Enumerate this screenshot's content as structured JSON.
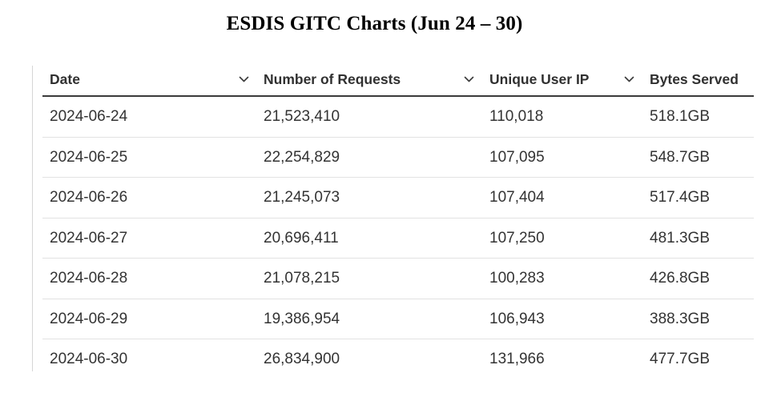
{
  "title": "ESDIS GITC Charts (Jun 24 – 30)",
  "columns": [
    {
      "label": "Date",
      "icon": "chevron-down-icon"
    },
    {
      "label": "Number of Requests",
      "icon": "chevron-down-icon"
    },
    {
      "label": "Unique User IP",
      "icon": "chevron-down-icon"
    },
    {
      "label": "Bytes Served"
    }
  ],
  "rows": [
    {
      "date": "2024-06-24",
      "requests": "21,523,410",
      "unique_ip": "110,018",
      "bytes": "518.1GB"
    },
    {
      "date": "2024-06-25",
      "requests": "22,254,829",
      "unique_ip": "107,095",
      "bytes": "548.7GB"
    },
    {
      "date": "2024-06-26",
      "requests": "21,245,073",
      "unique_ip": "107,404",
      "bytes": "517.4GB"
    },
    {
      "date": "2024-06-27",
      "requests": "20,696,411",
      "unique_ip": "107,250",
      "bytes": "481.3GB"
    },
    {
      "date": "2024-06-28",
      "requests": "21,078,215",
      "unique_ip": "100,283",
      "bytes": "426.8GB"
    },
    {
      "date": "2024-06-29",
      "requests": "19,386,954",
      "unique_ip": "106,943",
      "bytes": "388.3GB"
    },
    {
      "date": "2024-06-30",
      "requests": "26,834,900",
      "unique_ip": "131,966",
      "bytes": "477.7GB"
    }
  ]
}
